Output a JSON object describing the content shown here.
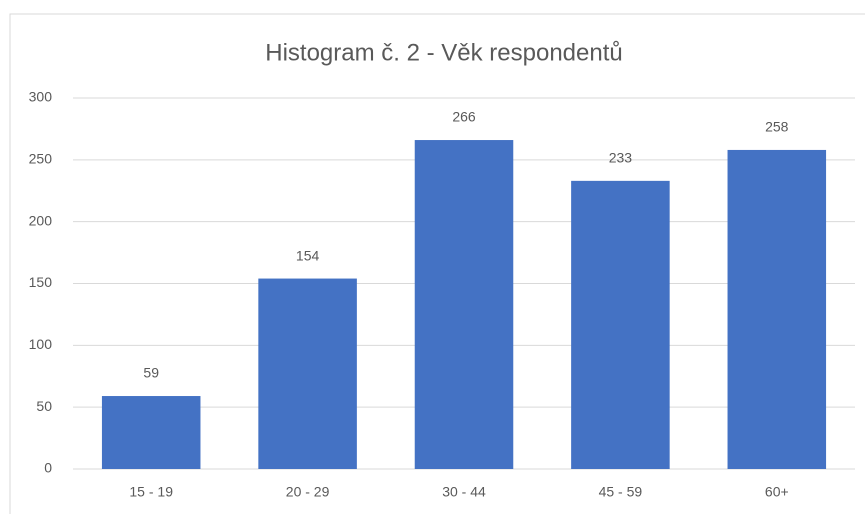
{
  "chart_data": {
    "type": "bar",
    "title": "Histogram č. 2 - Věk respondentů",
    "categories": [
      "15 - 19",
      "20 - 29",
      "30 - 44",
      "45 - 59",
      "60+"
    ],
    "values": [
      59,
      154,
      266,
      233,
      258
    ],
    "color": "#4472c4",
    "ylim": [
      0,
      300
    ],
    "yticks": [
      0,
      50,
      100,
      150,
      200,
      250,
      300
    ],
    "grid": true
  }
}
